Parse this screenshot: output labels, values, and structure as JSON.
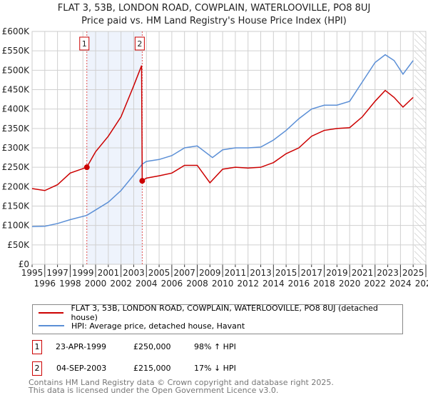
{
  "chart_data": {
    "type": "line",
    "title": "FLAT 3, 53B, LONDON ROAD, COWPLAIN, WATERLOOVILLE, PO8 8UJ",
    "subtitle": "Price paid vs. HM Land Registry's House Price Index (HPI)",
    "xlim": [
      1995,
      2026
    ],
    "ylim": [
      0,
      600000
    ],
    "x_ticks": [
      "1995",
      "1996",
      "1997",
      "1998",
      "1999",
      "2000",
      "2001",
      "2002",
      "2003",
      "2004",
      "2005",
      "2006",
      "2007",
      "2008",
      "2009",
      "2010",
      "2011",
      "2012",
      "2013",
      "2014",
      "2015",
      "2016",
      "2017",
      "2018",
      "2019",
      "2020",
      "2021",
      "2022",
      "2023",
      "2024",
      "2025",
      "2026"
    ],
    "y_ticks": [
      {
        "v": 0,
        "l": "£0"
      },
      {
        "v": 50000,
        "l": "£50K"
      },
      {
        "v": 100000,
        "l": "£100K"
      },
      {
        "v": 150000,
        "l": "£150K"
      },
      {
        "v": 200000,
        "l": "£200K"
      },
      {
        "v": 250000,
        "l": "£250K"
      },
      {
        "v": 300000,
        "l": "£300K"
      },
      {
        "v": 350000,
        "l": "£350K"
      },
      {
        "v": 400000,
        "l": "£400K"
      },
      {
        "v": 450000,
        "l": "£450K"
      },
      {
        "v": 500000,
        "l": "£500K"
      },
      {
        "v": 550000,
        "l": "£550K"
      },
      {
        "v": 600000,
        "l": "£600K"
      }
    ],
    "series": [
      {
        "name": "FLAT 3, 53B, LONDON ROAD, COWPLAIN, WATERLOOVILLE, PO8 8UJ (detached house)",
        "color": "#cc0000",
        "x": [
          1995,
          1996,
          1997,
          1998,
          1999.3,
          2000,
          2001,
          2002,
          2003,
          2003.62,
          2003.67,
          2004,
          2005,
          2006,
          2007,
          2008,
          2009,
          2010,
          2011,
          2012,
          2013,
          2014,
          2015,
          2016,
          2017,
          2018,
          2019,
          2020,
          2021,
          2022,
          2022.8,
          2023.5,
          2024.2,
          2025
        ],
        "y": [
          195000,
          190000,
          205000,
          235000,
          250000,
          290000,
          330000,
          380000,
          460000,
          512000,
          215000,
          222000,
          228000,
          235000,
          255000,
          255000,
          210000,
          245000,
          250000,
          248000,
          250000,
          262000,
          285000,
          300000,
          330000,
          345000,
          350000,
          352000,
          380000,
          420000,
          448000,
          430000,
          405000,
          430000
        ]
      },
      {
        "name": "HPI: Average price, detached house, Havant",
        "color": "#5b8fd6",
        "x": [
          1995,
          1996,
          1997,
          1998,
          1999.3,
          2000,
          2001,
          2002,
          2003,
          2003.67,
          2004,
          2005,
          2006,
          2007,
          2008,
          2009.2,
          2010,
          2011,
          2012,
          2013,
          2014,
          2015,
          2016,
          2017,
          2018,
          2019,
          2020,
          2021,
          2022,
          2022.8,
          2023.5,
          2024.2,
          2025
        ],
        "y": [
          97000,
          98000,
          105000,
          115000,
          126000,
          140000,
          160000,
          190000,
          230000,
          258000,
          265000,
          270000,
          280000,
          300000,
          305000,
          275000,
          295000,
          300000,
          300000,
          302000,
          320000,
          345000,
          375000,
          400000,
          410000,
          410000,
          420000,
          470000,
          520000,
          540000,
          525000,
          490000,
          525000
        ]
      }
    ],
    "sales": [
      {
        "id": "1",
        "x": 1999.31,
        "y": 250000,
        "date": "23-APR-1999",
        "price": "£250,000",
        "hpi": "98% ↑ HPI"
      },
      {
        "id": "2",
        "x": 2003.67,
        "y": 215000,
        "date": "04-SEP-2003",
        "price": "£215,000",
        "hpi": "17% ↓ HPI"
      }
    ],
    "forecast_from": 2025.1,
    "legend": "below"
  },
  "footer": {
    "line1": "Contains HM Land Registry data © Crown copyright and database right 2025.",
    "line2": "This data is licensed under the Open Government Licence v3.0."
  }
}
